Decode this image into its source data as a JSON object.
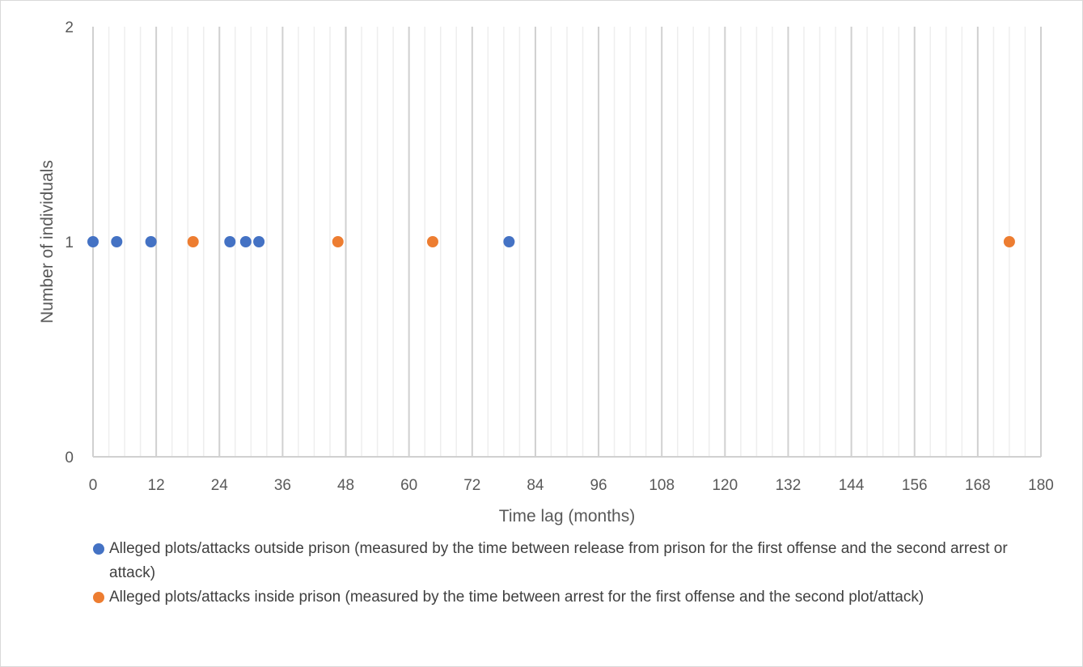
{
  "chart_data": {
    "type": "scatter",
    "xlabel": "Time lag (months)",
    "ylabel": "Number of individuals",
    "xlim": [
      0,
      180
    ],
    "ylim": [
      0,
      2
    ],
    "x_ticks": [
      "0",
      "12",
      "24",
      "36",
      "48",
      "60",
      "72",
      "84",
      "96",
      "108",
      "120",
      "132",
      "144",
      "156",
      "168",
      "180"
    ],
    "y_ticks": [
      "0",
      "1",
      "2"
    ],
    "grid": "vertical",
    "legend_position": "bottom",
    "series": [
      {
        "name": "Alleged plots/attacks outside prison (measured by the time between release from prison for the first offense and the second arrest or attack)",
        "color": "#4472C4",
        "points": [
          {
            "x": 0,
            "y": 1
          },
          {
            "x": 4.5,
            "y": 1
          },
          {
            "x": 11,
            "y": 1
          },
          {
            "x": 26,
            "y": 1
          },
          {
            "x": 29,
            "y": 1
          },
          {
            "x": 31.5,
            "y": 1
          },
          {
            "x": 79,
            "y": 1
          }
        ]
      },
      {
        "name": "Alleged plots/attacks inside prison (measured by the time between arrest for the first offense and the second plot/attack)",
        "color": "#ED7D31",
        "points": [
          {
            "x": 19,
            "y": 1
          },
          {
            "x": 46.5,
            "y": 1
          },
          {
            "x": 64.5,
            "y": 1
          },
          {
            "x": 174,
            "y": 1
          }
        ]
      }
    ]
  }
}
